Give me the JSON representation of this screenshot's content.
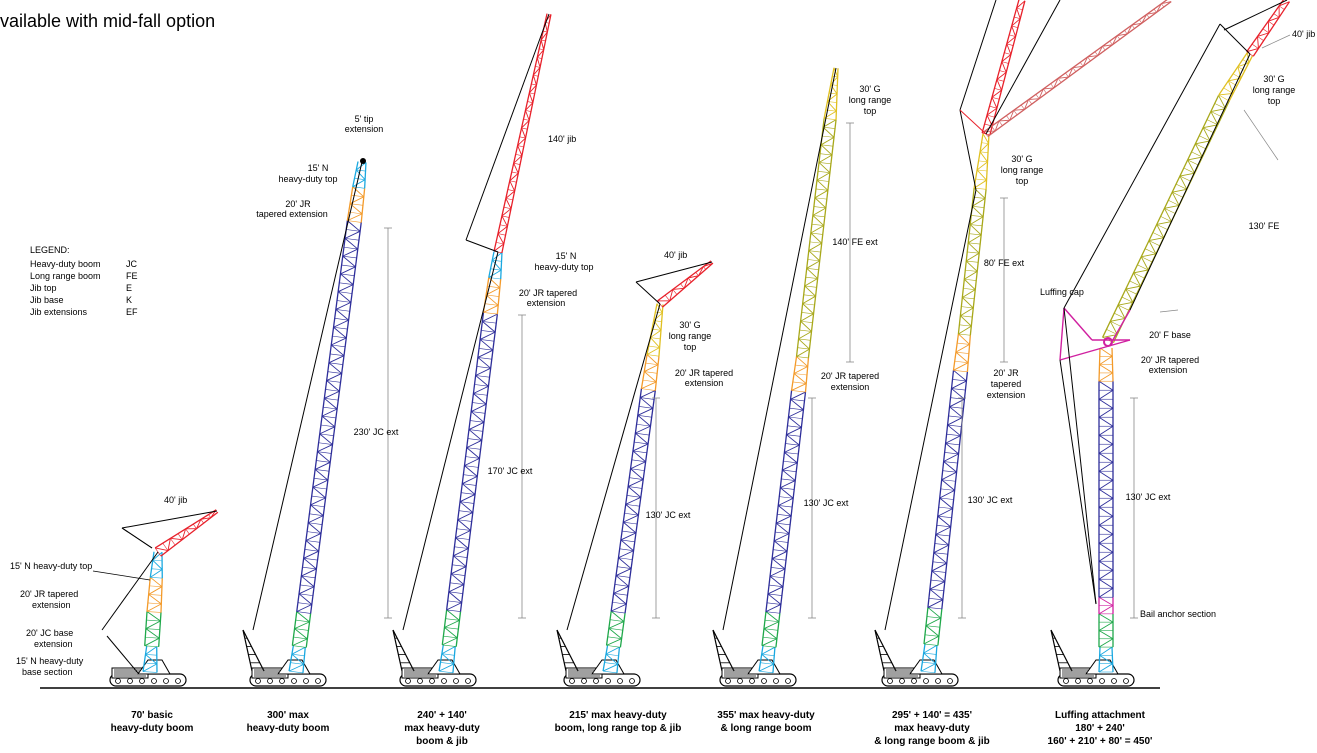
{
  "header": {
    "line1": "vailable with mid-fall option"
  },
  "legend": {
    "title": "LEGEND:",
    "items": [
      {
        "name": "Heavy-duty boom",
        "code": "JC"
      },
      {
        "name": "Long range boom",
        "code": "FE"
      },
      {
        "name": "Jib top",
        "code": "E"
      },
      {
        "name": "Jib base",
        "code": "K"
      },
      {
        "name": "Jib extensions",
        "code": "EF"
      }
    ]
  },
  "colors": {
    "jc_boom": "#2e2e9a",
    "base_section": "#1aa8e0",
    "jc_base": "#1fa84a",
    "tapered": "#f39a2a",
    "fe_boom": "#a8a81a",
    "g_top": "#e0c020",
    "jib": "#e8202a",
    "luffing": "#d020a0",
    "dim_line": "#888888"
  },
  "configurations": [
    {
      "caption": [
        "70' basic",
        "heavy-duty boom"
      ],
      "labels": [
        "40' jib",
        "15' N heavy-duty top",
        "20' JR tapered",
        "extension",
        "20' JC base",
        "extension",
        "15' N heavy-duty",
        "base section"
      ]
    },
    {
      "caption": [
        "300' max",
        "heavy-duty boom"
      ],
      "labels": [
        "5' tip",
        "extension",
        "15' N",
        "heavy-duty top",
        "20' JR",
        "tapered extension",
        "230' JC ext"
      ]
    },
    {
      "caption": [
        "240' + 140'",
        "max heavy-duty",
        "boom & jib"
      ],
      "labels": [
        "140' jib",
        "15' N",
        "heavy-duty top",
        "20' JR tapered",
        "extension",
        "170' JC ext"
      ]
    },
    {
      "caption": [
        "215' max heavy-duty",
        "boom, long range top & jib"
      ],
      "labels": [
        "40' jib",
        "30' G",
        "long range",
        "top",
        "20' JR tapered",
        "extension",
        "130' JC ext"
      ]
    },
    {
      "caption": [
        "355' max heavy-duty",
        "& long range boom"
      ],
      "labels": [
        "30' G",
        "long range",
        "top",
        "140' FE ext",
        "20' JR tapered",
        "extension",
        "130' JC ext"
      ]
    },
    {
      "caption": [
        "295' + 140' = 435'",
        "max heavy-duty",
        "& long range boom & jib"
      ],
      "labels": [
        "30' G",
        "long range",
        "top",
        "80' FE ext",
        "20' JR",
        "tapered",
        "extension",
        "130' JC ext"
      ]
    },
    {
      "caption": [
        "Luffing attachment",
        "180' + 240'",
        "160' + 210' + 80' = 450'"
      ],
      "labels": [
        "40' jib",
        "30' G",
        "long range",
        "top",
        "130' FE",
        "Luffing cap",
        "20' F base",
        "20' JR tapered",
        "extension",
        "130' JC ext",
        "Bail anchor section"
      ]
    }
  ]
}
